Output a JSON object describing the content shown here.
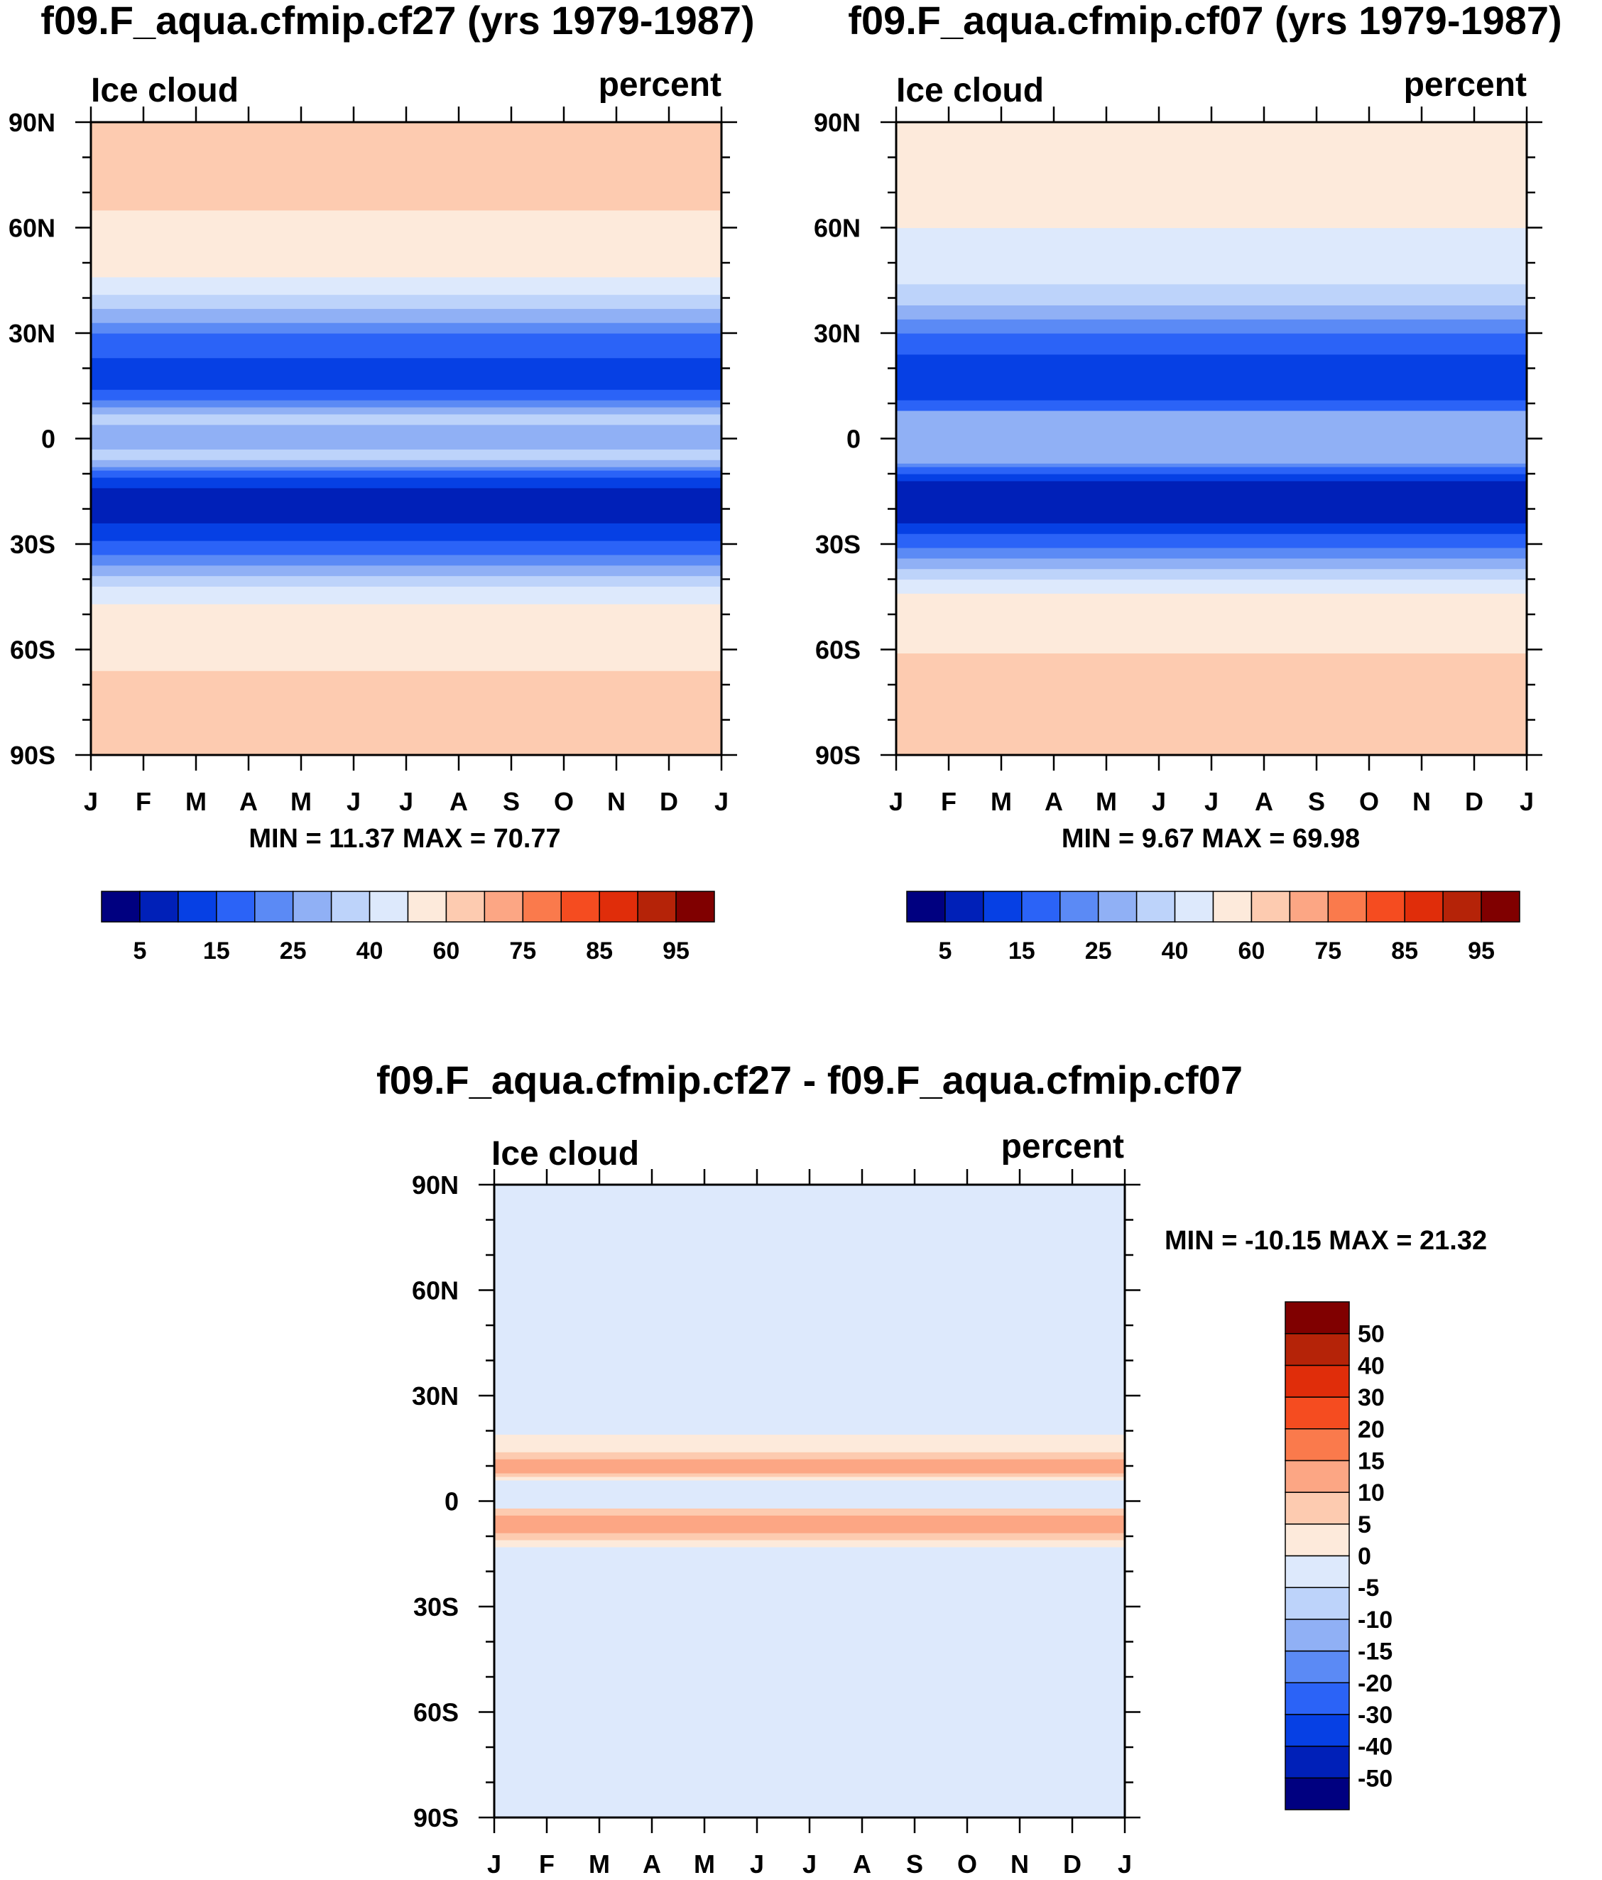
{
  "chart_data": [
    {
      "id": "panel1",
      "type": "contour",
      "title": "f09.F_aqua.cfmip.cf27 (yrs 1979-1987)",
      "left_label": "Ice cloud",
      "right_label": "percent",
      "x_labels": [
        "J",
        "F",
        "M",
        "A",
        "M",
        "J",
        "J",
        "A",
        "S",
        "O",
        "N",
        "D",
        "J"
      ],
      "y_labels": [
        "90N",
        "60N",
        "30N",
        "0",
        "30S",
        "60S",
        "90S"
      ],
      "ylim": [
        -90,
        90
      ],
      "min_max_text": "MIN =  11.37 MAX =  70.77",
      "stats": {
        "min": 11.37,
        "max": 70.77
      },
      "colorbar": {
        "orientation": "horizontal",
        "colors": [
          "#000080",
          "#0020b8",
          "#0640e4",
          "#2b63f7",
          "#5b8af5",
          "#90b0f5",
          "#bdd3fa",
          "#dde9fc",
          "#fdeadb",
          "#fdcbb0",
          "#fca684",
          "#fa7a4c",
          "#f54c20",
          "#e02d0a",
          "#b52308",
          "#800000"
        ],
        "tick_labels": [
          "5",
          "15",
          "25",
          "40",
          "60",
          "75",
          "85",
          "95"
        ]
      },
      "zonal_profile": [
        {
          "lat": -90,
          "level": 9
        },
        {
          "lat": -67,
          "level": 9
        },
        {
          "lat": -66,
          "level": 8
        },
        {
          "lat": -48,
          "level": 8
        },
        {
          "lat": -47,
          "level": 7
        },
        {
          "lat": -42,
          "level": 6
        },
        {
          "lat": -39,
          "level": 5
        },
        {
          "lat": -36,
          "level": 4
        },
        {
          "lat": -33,
          "level": 3
        },
        {
          "lat": -29,
          "level": 2
        },
        {
          "lat": -24,
          "level": 1
        },
        {
          "lat": -14,
          "level": 2
        },
        {
          "lat": -11,
          "level": 3
        },
        {
          "lat": -9,
          "level": 4
        },
        {
          "lat": -8,
          "level": 5
        },
        {
          "lat": -6,
          "level": 6
        },
        {
          "lat": -3,
          "level": 5
        },
        {
          "lat": 4,
          "level": 6
        },
        {
          "lat": 7,
          "level": 5
        },
        {
          "lat": 9,
          "level": 4
        },
        {
          "lat": 11,
          "level": 3
        },
        {
          "lat": 14,
          "level": 2
        },
        {
          "lat": 23,
          "level": 3
        },
        {
          "lat": 30,
          "level": 4
        },
        {
          "lat": 33,
          "level": 5
        },
        {
          "lat": 37,
          "level": 6
        },
        {
          "lat": 41,
          "level": 7
        },
        {
          "lat": 46,
          "level": 8
        },
        {
          "lat": 65,
          "level": 9
        }
      ]
    },
    {
      "id": "panel2",
      "type": "contour",
      "title": "f09.F_aqua.cfmip.cf07 (yrs 1979-1987)",
      "left_label": "Ice cloud",
      "right_label": "percent",
      "x_labels": [
        "J",
        "F",
        "M",
        "A",
        "M",
        "J",
        "J",
        "A",
        "S",
        "O",
        "N",
        "D",
        "J"
      ],
      "y_labels": [
        "90N",
        "60N",
        "30N",
        "0",
        "30S",
        "60S",
        "90S"
      ],
      "ylim": [
        -90,
        90
      ],
      "min_max_text": "MIN =   9.67 MAX =  69.98",
      "stats": {
        "min": 9.67,
        "max": 69.98
      },
      "colorbar": {
        "orientation": "horizontal",
        "colors": [
          "#000080",
          "#0020b8",
          "#0640e4",
          "#2b63f7",
          "#5b8af5",
          "#90b0f5",
          "#bdd3fa",
          "#dde9fc",
          "#fdeadb",
          "#fdcbb0",
          "#fca684",
          "#fa7a4c",
          "#f54c20",
          "#e02d0a",
          "#b52308",
          "#800000"
        ],
        "tick_labels": [
          "5",
          "15",
          "25",
          "40",
          "60",
          "75",
          "85",
          "95"
        ]
      },
      "zonal_profile": [
        {
          "lat": -90,
          "level": 9
        },
        {
          "lat": -61,
          "level": 8
        },
        {
          "lat": -44,
          "level": 7
        },
        {
          "lat": -40,
          "level": 6
        },
        {
          "lat": -37,
          "level": 5
        },
        {
          "lat": -34,
          "level": 4
        },
        {
          "lat": -31,
          "level": 3
        },
        {
          "lat": -27,
          "level": 2
        },
        {
          "lat": -24,
          "level": 1
        },
        {
          "lat": -12,
          "level": 2
        },
        {
          "lat": -10,
          "level": 3
        },
        {
          "lat": -8,
          "level": 4
        },
        {
          "lat": -7,
          "level": 5
        },
        {
          "lat": 8,
          "level": 3
        },
        {
          "lat": 11,
          "level": 2
        },
        {
          "lat": 24,
          "level": 3
        },
        {
          "lat": 30,
          "level": 4
        },
        {
          "lat": 34,
          "level": 5
        },
        {
          "lat": 38,
          "level": 6
        },
        {
          "lat": 44,
          "level": 7
        },
        {
          "lat": 60,
          "level": 8
        },
        {
          "lat": 90,
          "level": 9
        }
      ]
    },
    {
      "id": "panel3",
      "type": "contour",
      "title": "f09.F_aqua.cfmip.cf27 - f09.F_aqua.cfmip.cf07",
      "left_label": "Ice cloud",
      "right_label": "percent",
      "x_labels": [
        "J",
        "F",
        "M",
        "A",
        "M",
        "J",
        "J",
        "A",
        "S",
        "O",
        "N",
        "D",
        "J"
      ],
      "y_labels": [
        "90N",
        "60N",
        "30N",
        "0",
        "30S",
        "60S",
        "90S"
      ],
      "ylim": [
        -90,
        90
      ],
      "min_max_text": "MIN = -10.15 MAX =  21.32",
      "stats": {
        "min": -10.15,
        "max": 21.32
      },
      "colorbar": {
        "orientation": "vertical",
        "colors": [
          "#000080",
          "#0020b8",
          "#0640e4",
          "#2b63f7",
          "#5b8af5",
          "#90b0f5",
          "#bdd3fa",
          "#dde9fc",
          "#fdeadb",
          "#fdcbb0",
          "#fca684",
          "#fa7a4c",
          "#f54c20",
          "#e02d0a",
          "#b52308",
          "#800000"
        ],
        "tick_labels": [
          "50",
          "40",
          "30",
          "20",
          "15",
          "10",
          "5",
          "0",
          "-5",
          "-10",
          "-15",
          "-20",
          "-30",
          "-40",
          "-50"
        ]
      },
      "zonal_profile": [
        {
          "lat": -90,
          "level": 7
        },
        {
          "lat": -13,
          "level": 8
        },
        {
          "lat": -11,
          "level": 9
        },
        {
          "lat": -9,
          "level": 10
        },
        {
          "lat": -4,
          "level": 9
        },
        {
          "lat": -2,
          "level": 7
        },
        {
          "lat": 6,
          "level": 8
        },
        {
          "lat": 7,
          "level": 9
        },
        {
          "lat": 8,
          "level": 10
        },
        {
          "lat": 12,
          "level": 9
        },
        {
          "lat": 14,
          "level": 8
        },
        {
          "lat": 19,
          "level": 7
        },
        {
          "lat": 90,
          "level": 7
        }
      ]
    }
  ]
}
